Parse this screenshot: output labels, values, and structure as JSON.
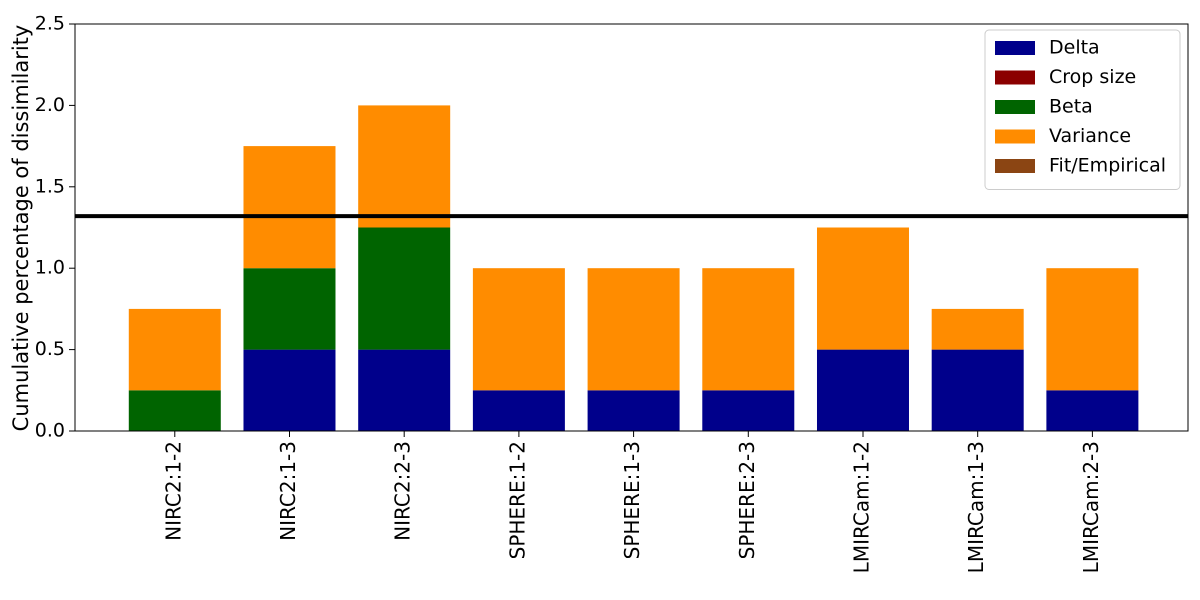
{
  "chart_data": {
    "type": "stacked_bar",
    "y_label": "Cumulative percentage of dissimilarity",
    "categories": [
      "NIRC2:1-2",
      "NIRC2:1-3",
      "NIRC2:2-3",
      "SPHERE:1-2",
      "SPHERE:1-3",
      "SPHERE:2-3",
      "LMIRCam:1-2",
      "LMIRCam:1-3",
      "LMIRCam:2-3"
    ],
    "series": [
      {
        "name": "Delta",
        "color": "#00008b",
        "values": [
          0,
          0.5,
          0.5,
          0.25,
          0.25,
          0.25,
          0.5,
          0.5,
          0.25
        ]
      },
      {
        "name": "Crop size",
        "color": "#8b0000",
        "values": [
          0,
          0,
          0,
          0,
          0,
          0,
          0,
          0,
          0
        ]
      },
      {
        "name": "Beta",
        "color": "#006400",
        "values": [
          0.25,
          0.5,
          0.75,
          0,
          0,
          0,
          0,
          0,
          0
        ]
      },
      {
        "name": "Variance",
        "color": "#ff8c00",
        "values": [
          0.5,
          0.75,
          0.75,
          0.75,
          0.75,
          0.75,
          0.75,
          0.25,
          0.75
        ]
      },
      {
        "name": "Fit/Empirical",
        "color": "#8b4513",
        "values": [
          0,
          0,
          0,
          0,
          0,
          0,
          0,
          0,
          0
        ]
      }
    ],
    "reference_line": 1.32,
    "ylim": [
      0,
      2.5
    ],
    "yticks": [
      {
        "value": 0,
        "label": "0.0"
      },
      0.5,
      {
        "value": 1,
        "label": "1.0"
      },
      1.5,
      {
        "value": 2,
        "label": "2.0"
      },
      2.5
    ],
    "legend": "upper right"
  }
}
